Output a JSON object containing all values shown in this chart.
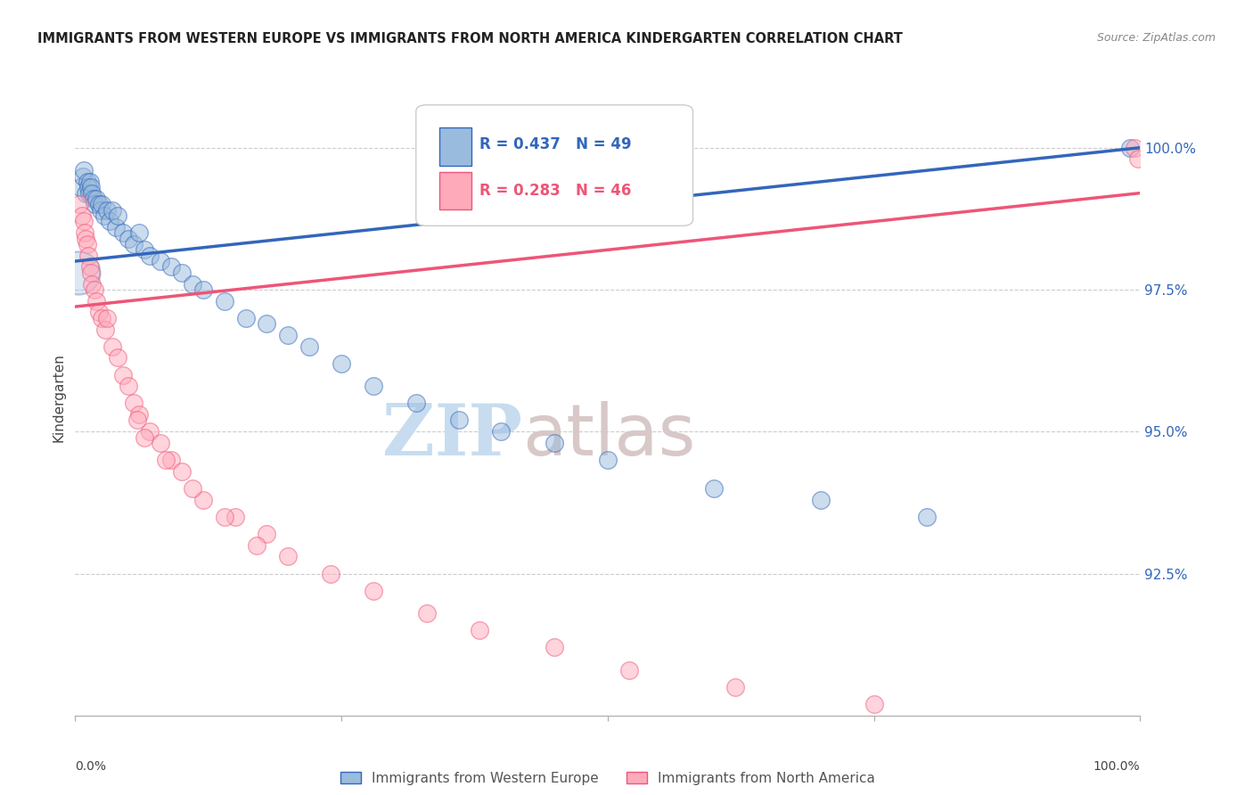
{
  "title": "IMMIGRANTS FROM WESTERN EUROPE VS IMMIGRANTS FROM NORTH AMERICA KINDERGARTEN CORRELATION CHART",
  "source": "Source: ZipAtlas.com",
  "ylabel": "Kindergarten",
  "xlim": [
    0.0,
    100.0
  ],
  "ylim": [
    90.0,
    101.2
  ],
  "blue_R": 0.437,
  "blue_N": 49,
  "pink_R": 0.283,
  "pink_N": 46,
  "blue_color": "#99BBDD",
  "pink_color": "#FFAABB",
  "trendline_blue": "#3366BB",
  "trendline_pink": "#EE5577",
  "watermark_zip": "ZIP",
  "watermark_atlas": "atlas",
  "watermark_color_zip": "#C8DCF0",
  "watermark_color_atlas": "#D8C8C8",
  "legend_blue": "Immigrants from Western Europe",
  "legend_pink": "Immigrants from North America",
  "blue_x": [
    0.5,
    0.7,
    0.8,
    1.0,
    1.1,
    1.2,
    1.3,
    1.4,
    1.5,
    1.6,
    1.7,
    1.8,
    2.0,
    2.2,
    2.4,
    2.5,
    2.7,
    3.0,
    3.2,
    3.5,
    3.8,
    4.0,
    4.5,
    5.0,
    5.5,
    6.0,
    6.5,
    7.0,
    8.0,
    9.0,
    10.0,
    11.0,
    12.0,
    14.0,
    16.0,
    18.0,
    20.0,
    22.0,
    25.0,
    28.0,
    32.0,
    36.0,
    40.0,
    45.0,
    50.0,
    60.0,
    70.0,
    80.0,
    99.0
  ],
  "blue_y": [
    99.3,
    99.5,
    99.6,
    99.2,
    99.4,
    99.3,
    99.2,
    99.4,
    99.3,
    99.2,
    99.1,
    99.0,
    99.1,
    99.0,
    98.9,
    99.0,
    98.8,
    98.9,
    98.7,
    98.9,
    98.6,
    98.8,
    98.5,
    98.4,
    98.3,
    98.5,
    98.2,
    98.1,
    98.0,
    97.9,
    97.8,
    97.6,
    97.5,
    97.3,
    97.0,
    96.9,
    96.7,
    96.5,
    96.2,
    95.8,
    95.5,
    95.2,
    95.0,
    94.8,
    94.5,
    94.0,
    93.8,
    93.5,
    100.0
  ],
  "pink_x": [
    0.4,
    0.6,
    0.8,
    0.9,
    1.0,
    1.1,
    1.2,
    1.4,
    1.5,
    1.6,
    1.8,
    2.0,
    2.2,
    2.5,
    2.8,
    3.0,
    3.5,
    4.0,
    4.5,
    5.0,
    5.5,
    6.0,
    7.0,
    8.0,
    9.0,
    10.0,
    12.0,
    15.0,
    18.0,
    5.8,
    6.5,
    8.5,
    11.0,
    14.0,
    17.0,
    20.0,
    24.0,
    28.0,
    33.0,
    38.0,
    45.0,
    52.0,
    62.0,
    75.0,
    99.5,
    99.8
  ],
  "pink_y": [
    99.0,
    98.8,
    98.7,
    98.5,
    98.4,
    98.3,
    98.1,
    97.9,
    97.8,
    97.6,
    97.5,
    97.3,
    97.1,
    97.0,
    96.8,
    97.0,
    96.5,
    96.3,
    96.0,
    95.8,
    95.5,
    95.3,
    95.0,
    94.8,
    94.5,
    94.3,
    93.8,
    93.5,
    93.2,
    95.2,
    94.9,
    94.5,
    94.0,
    93.5,
    93.0,
    92.8,
    92.5,
    92.2,
    91.8,
    91.5,
    91.2,
    90.8,
    90.5,
    90.2,
    100.0,
    99.8
  ],
  "big_blue_x": 0.3,
  "big_blue_y": 97.8,
  "big_blue_size": 1200,
  "ytick_vals": [
    92.5,
    95.0,
    97.5,
    100.0
  ],
  "ytick_labels": [
    "92.5%",
    "95.0%",
    "97.5%",
    "100.0%"
  ],
  "blue_line_x0": 0,
  "blue_line_x1": 100,
  "blue_line_y0": 98.0,
  "blue_line_y1": 100.0,
  "pink_line_x0": 0,
  "pink_line_x1": 100,
  "pink_line_y0": 97.2,
  "pink_line_y1": 99.2
}
